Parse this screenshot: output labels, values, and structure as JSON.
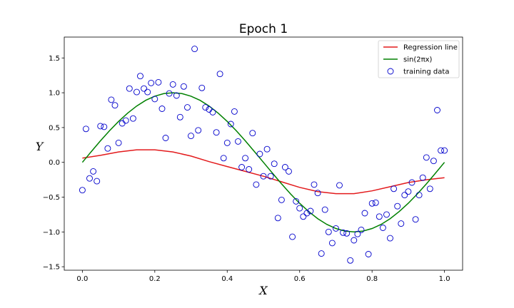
{
  "chart_data": {
    "type": "scatter",
    "title": "Epoch 1",
    "xlabel": "X",
    "ylabel": "Y",
    "xlim": [
      -0.05,
      1.05
    ],
    "ylim": [
      -1.55,
      1.8
    ],
    "xticks": [
      0.0,
      0.2,
      0.4,
      0.6,
      0.8,
      1.0
    ],
    "xtick_labels": [
      "0.0",
      "0.2",
      "0.4",
      "0.6",
      "0.8",
      "1.0"
    ],
    "yticks": [
      -1.5,
      -1.0,
      -0.5,
      0.0,
      0.5,
      1.0,
      1.5
    ],
    "ytick_labels": [
      "−1.5",
      "−1.0",
      "−0.5",
      "0.0",
      "0.5",
      "1.0",
      "1.5"
    ],
    "grid": false,
    "legend_position": "top-right",
    "series": [
      {
        "name": "Regression line",
        "kind": "line",
        "color": "#e31a1c",
        "x": [
          0.0,
          0.05,
          0.1,
          0.15,
          0.2,
          0.25,
          0.3,
          0.35,
          0.4,
          0.45,
          0.5,
          0.55,
          0.6,
          0.65,
          0.7,
          0.75,
          0.8,
          0.85,
          0.9,
          0.95,
          1.0
        ],
        "y": [
          0.06,
          0.1,
          0.15,
          0.18,
          0.18,
          0.15,
          0.09,
          0.01,
          -0.06,
          -0.13,
          -0.2,
          -0.28,
          -0.36,
          -0.42,
          -0.45,
          -0.45,
          -0.41,
          -0.35,
          -0.29,
          -0.25,
          -0.22
        ]
      },
      {
        "name": "sin(2πx)",
        "kind": "line",
        "color": "#008000",
        "x": [
          0.0,
          0.025,
          0.05,
          0.075,
          0.1,
          0.125,
          0.15,
          0.175,
          0.2,
          0.225,
          0.25,
          0.275,
          0.3,
          0.325,
          0.35,
          0.375,
          0.4,
          0.425,
          0.45,
          0.475,
          0.5,
          0.525,
          0.55,
          0.575,
          0.6,
          0.625,
          0.65,
          0.675,
          0.7,
          0.725,
          0.75,
          0.775,
          0.8,
          0.825,
          0.85,
          0.875,
          0.9,
          0.925,
          0.95,
          0.975,
          1.0
        ],
        "y": [
          0.0,
          0.156,
          0.309,
          0.454,
          0.588,
          0.707,
          0.809,
          0.891,
          0.951,
          0.988,
          1.0,
          0.988,
          0.951,
          0.891,
          0.809,
          0.707,
          0.588,
          0.454,
          0.309,
          0.156,
          0.0,
          -0.156,
          -0.309,
          -0.454,
          -0.588,
          -0.707,
          -0.809,
          -0.891,
          -0.951,
          -0.988,
          -1.0,
          -0.988,
          -0.951,
          -0.891,
          -0.809,
          -0.707,
          -0.588,
          -0.454,
          -0.309,
          -0.156,
          0.0
        ]
      },
      {
        "name": "training data",
        "kind": "scatter",
        "color": "#0000cc",
        "x": [
          0.0,
          0.01,
          0.02,
          0.03,
          0.04,
          0.05,
          0.06,
          0.07,
          0.08,
          0.09,
          0.1,
          0.11,
          0.12,
          0.13,
          0.14,
          0.15,
          0.16,
          0.17,
          0.18,
          0.19,
          0.2,
          0.21,
          0.22,
          0.23,
          0.24,
          0.25,
          0.26,
          0.27,
          0.28,
          0.29,
          0.3,
          0.31,
          0.32,
          0.33,
          0.34,
          0.35,
          0.36,
          0.37,
          0.38,
          0.39,
          0.4,
          0.41,
          0.42,
          0.43,
          0.44,
          0.45,
          0.46,
          0.47,
          0.48,
          0.49,
          0.5,
          0.51,
          0.52,
          0.53,
          0.54,
          0.55,
          0.56,
          0.57,
          0.58,
          0.59,
          0.6,
          0.61,
          0.62,
          0.63,
          0.64,
          0.65,
          0.66,
          0.67,
          0.68,
          0.69,
          0.7,
          0.71,
          0.72,
          0.73,
          0.74,
          0.75,
          0.76,
          0.77,
          0.78,
          0.79,
          0.8,
          0.81,
          0.82,
          0.83,
          0.84,
          0.85,
          0.86,
          0.87,
          0.88,
          0.89,
          0.9,
          0.91,
          0.92,
          0.93,
          0.94,
          0.95,
          0.96,
          0.97,
          0.98,
          0.99,
          1.0
        ],
        "y": [
          -0.4,
          0.48,
          -0.23,
          -0.13,
          -0.27,
          0.52,
          0.51,
          0.2,
          0.9,
          0.82,
          0.28,
          0.56,
          0.6,
          1.06,
          0.63,
          1.01,
          1.24,
          1.06,
          1.01,
          1.14,
          0.91,
          1.15,
          0.77,
          0.35,
          0.99,
          1.12,
          0.96,
          0.65,
          1.09,
          0.79,
          0.38,
          1.63,
          0.46,
          1.07,
          0.79,
          0.76,
          0.72,
          0.43,
          1.27,
          0.06,
          0.28,
          0.55,
          0.73,
          0.3,
          -0.07,
          0.06,
          -0.1,
          0.42,
          -0.32,
          0.12,
          -0.2,
          0.19,
          -0.2,
          -0.02,
          -0.8,
          -0.54,
          -0.07,
          -0.13,
          -1.07,
          -0.56,
          -0.66,
          -0.78,
          -0.73,
          -0.7,
          -0.32,
          -0.44,
          -1.31,
          -0.68,
          -1.0,
          -1.16,
          -0.95,
          -0.33,
          -1.01,
          -1.02,
          -1.41,
          -1.12,
          -1.03,
          -0.97,
          -0.73,
          -1.32,
          -0.59,
          -0.58,
          -0.78,
          -0.94,
          -0.75,
          -1.09,
          -0.38,
          -0.63,
          -0.88,
          -0.47,
          -0.42,
          -0.29,
          -0.82,
          -0.47,
          -0.22,
          0.07,
          -0.38,
          0.02,
          0.75,
          0.17,
          0.17
        ]
      }
    ]
  }
}
